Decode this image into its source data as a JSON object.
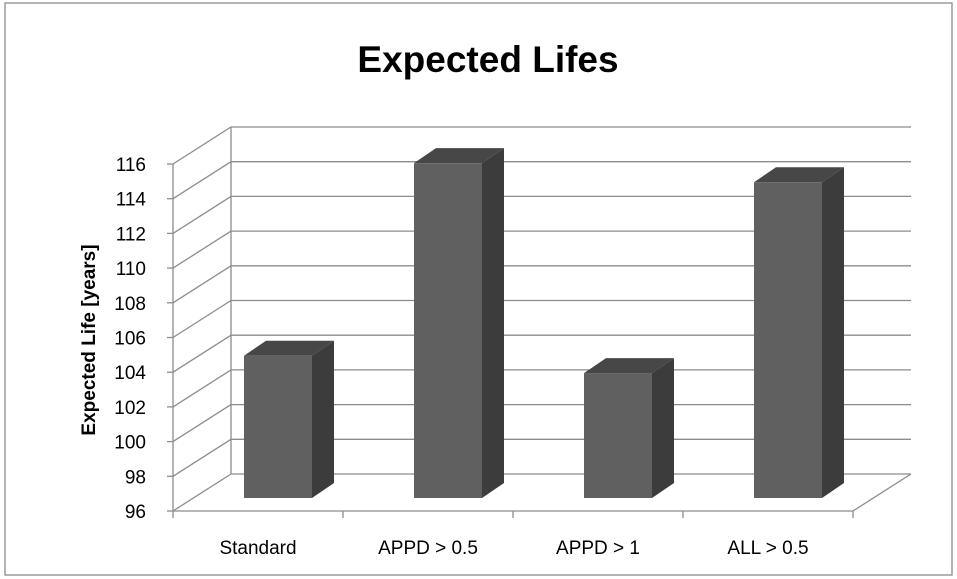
{
  "chart_data": {
    "type": "bar",
    "title": "Expected Lifes",
    "ylabel": "Expected Life [years]",
    "xlabel": "",
    "categories": [
      "Standard",
      "APPD > 0.5",
      "APPD > 1",
      "ALL > 0.5"
    ],
    "values": [
      104.2,
      115.3,
      103.2,
      114.2
    ],
    "ylim": [
      96,
      116
    ],
    "y_ticks": [
      96,
      98,
      100,
      102,
      104,
      106,
      108,
      110,
      112,
      114,
      116
    ],
    "grid": true,
    "style": "3d-column",
    "colors": {
      "bar_front": "#606060",
      "bar_top": "#474747",
      "bar_side": "#3c3c3c",
      "grid": "#8c8c8c",
      "frame": "#8c8c8c"
    }
  }
}
